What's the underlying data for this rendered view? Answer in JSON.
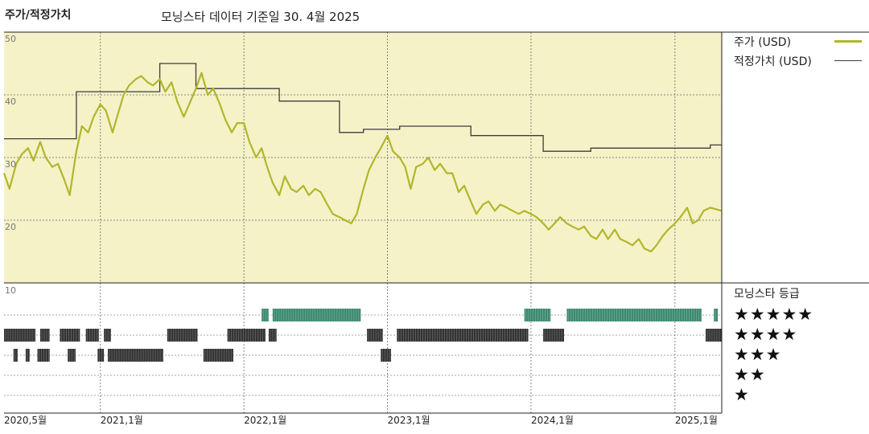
{
  "title": "주가/적정가치",
  "subtitle": "모닝스타 데이터 기준일 30. 4월 2025",
  "legend": {
    "price_label": "주가 (USD)",
    "fair_label": "적정가치 (USD)",
    "rating_title": "모닝스타 등급"
  },
  "colors": {
    "price": "#b1b62b",
    "fair": "#3c3c3c",
    "panel_bg": "#f5f2c8",
    "rating_top": "#3d8a70",
    "rating_other": "#333333"
  },
  "star_rows": [
    "★★★★★",
    "★★★★",
    "★★★",
    "★★",
    "★"
  ],
  "chart_data": {
    "type": "line",
    "y_ticks": [
      "50",
      "40",
      "30",
      "20"
    ],
    "ylim": [
      10,
      50
    ],
    "x_tick_labels": [
      "2020,5월",
      "2021,1월",
      "2022,1월",
      "2023,1월",
      "2024,1월",
      "2025,1월"
    ],
    "x_tick_dates": [
      "2020-05-01",
      "2021-01-01",
      "2022-01-01",
      "2023-01-01",
      "2024-01-01",
      "2025-01-01"
    ],
    "xlim": [
      "2020-05-01",
      "2025-04-30"
    ],
    "series": [
      {
        "name": "주가 (USD)",
        "points": [
          [
            "2020-05-01",
            27.5
          ],
          [
            "2020-05-15",
            25.0
          ],
          [
            "2020-06-01",
            29.0
          ],
          [
            "2020-06-15",
            30.5
          ],
          [
            "2020-07-01",
            31.5
          ],
          [
            "2020-07-15",
            29.5
          ],
          [
            "2020-08-01",
            32.5
          ],
          [
            "2020-08-15",
            30.0
          ],
          [
            "2020-09-01",
            28.5
          ],
          [
            "2020-09-15",
            29.0
          ],
          [
            "2020-10-01",
            26.5
          ],
          [
            "2020-10-15",
            24.0
          ],
          [
            "2020-11-01",
            31.0
          ],
          [
            "2020-11-15",
            35.0
          ],
          [
            "2020-12-01",
            34.0
          ],
          [
            "2020-12-15",
            36.5
          ],
          [
            "2021-01-01",
            38.5
          ],
          [
            "2021-01-15",
            37.5
          ],
          [
            "2021-02-01",
            34.0
          ],
          [
            "2021-02-15",
            37.0
          ],
          [
            "2021-03-01",
            40.0
          ],
          [
            "2021-03-15",
            41.5
          ],
          [
            "2021-04-01",
            42.5
          ],
          [
            "2021-04-15",
            43.0
          ],
          [
            "2021-05-01",
            42.0
          ],
          [
            "2021-05-15",
            41.5
          ],
          [
            "2021-06-01",
            42.5
          ],
          [
            "2021-06-15",
            40.5
          ],
          [
            "2021-07-01",
            42.0
          ],
          [
            "2021-07-15",
            39.0
          ],
          [
            "2021-08-01",
            36.5
          ],
          [
            "2021-08-15",
            38.5
          ],
          [
            "2021-09-01",
            41.0
          ],
          [
            "2021-09-15",
            43.5
          ],
          [
            "2021-10-01",
            40.0
          ],
          [
            "2021-10-15",
            41.0
          ],
          [
            "2021-11-01",
            38.5
          ],
          [
            "2021-11-15",
            36.0
          ],
          [
            "2021-12-01",
            34.0
          ],
          [
            "2021-12-15",
            35.5
          ],
          [
            "2022-01-01",
            35.5
          ],
          [
            "2022-01-15",
            32.5
          ],
          [
            "2022-02-01",
            30.0
          ],
          [
            "2022-02-15",
            31.5
          ],
          [
            "2022-03-01",
            28.5
          ],
          [
            "2022-03-15",
            26.0
          ],
          [
            "2022-04-01",
            24.0
          ],
          [
            "2022-04-15",
            27.0
          ],
          [
            "2022-05-01",
            25.0
          ],
          [
            "2022-05-15",
            24.5
          ],
          [
            "2022-06-01",
            25.5
          ],
          [
            "2022-06-15",
            24.0
          ],
          [
            "2022-07-01",
            25.0
          ],
          [
            "2022-07-15",
            24.5
          ],
          [
            "2022-08-01",
            22.5
          ],
          [
            "2022-08-15",
            21.0
          ],
          [
            "2022-09-01",
            20.5
          ],
          [
            "2022-09-15",
            20.0
          ],
          [
            "2022-10-01",
            19.5
          ],
          [
            "2022-10-15",
            21.0
          ],
          [
            "2022-11-01",
            25.0
          ],
          [
            "2022-11-15",
            28.0
          ],
          [
            "2022-12-01",
            30.0
          ],
          [
            "2022-12-15",
            31.5
          ],
          [
            "2023-01-01",
            33.5
          ],
          [
            "2023-01-15",
            31.0
          ],
          [
            "2023-02-01",
            30.0
          ],
          [
            "2023-02-15",
            28.5
          ],
          [
            "2023-03-01",
            25.0
          ],
          [
            "2023-03-15",
            28.5
          ],
          [
            "2023-04-01",
            29.0
          ],
          [
            "2023-04-15",
            30.0
          ],
          [
            "2023-05-01",
            28.0
          ],
          [
            "2023-05-15",
            29.0
          ],
          [
            "2023-06-01",
            27.5
          ],
          [
            "2023-06-15",
            27.5
          ],
          [
            "2023-07-01",
            24.5
          ],
          [
            "2023-07-15",
            25.5
          ],
          [
            "2023-08-01",
            23.0
          ],
          [
            "2023-08-15",
            21.0
          ],
          [
            "2023-09-01",
            22.5
          ],
          [
            "2023-09-15",
            23.0
          ],
          [
            "2023-10-01",
            21.5
          ],
          [
            "2023-10-15",
            22.5
          ],
          [
            "2023-11-01",
            22.0
          ],
          [
            "2023-11-15",
            21.5
          ],
          [
            "2023-12-01",
            21.0
          ],
          [
            "2023-12-15",
            21.5
          ],
          [
            "2024-01-01",
            21.0
          ],
          [
            "2024-01-15",
            20.5
          ],
          [
            "2024-02-01",
            19.5
          ],
          [
            "2024-02-15",
            18.5
          ],
          [
            "2024-03-01",
            19.5
          ],
          [
            "2024-03-15",
            20.5
          ],
          [
            "2024-04-01",
            19.5
          ],
          [
            "2024-04-15",
            19.0
          ],
          [
            "2024-05-01",
            18.5
          ],
          [
            "2024-05-15",
            19.0
          ],
          [
            "2024-06-01",
            17.5
          ],
          [
            "2024-06-15",
            17.0
          ],
          [
            "2024-07-01",
            18.5
          ],
          [
            "2024-07-15",
            17.0
          ],
          [
            "2024-08-01",
            18.5
          ],
          [
            "2024-08-15",
            17.0
          ],
          [
            "2024-09-01",
            16.5
          ],
          [
            "2024-09-15",
            16.0
          ],
          [
            "2024-10-01",
            17.0
          ],
          [
            "2024-10-15",
            15.5
          ],
          [
            "2024-11-01",
            15.0
          ],
          [
            "2024-11-15",
            16.0
          ],
          [
            "2024-12-01",
            17.5
          ],
          [
            "2024-12-15",
            18.5
          ],
          [
            "2025-01-01",
            19.5
          ],
          [
            "2025-01-15",
            20.5
          ],
          [
            "2025-02-01",
            22.0
          ],
          [
            "2025-02-15",
            19.5
          ],
          [
            "2025-03-01",
            20.0
          ],
          [
            "2025-03-15",
            21.5
          ],
          [
            "2025-04-01",
            22.0
          ],
          [
            "2025-04-30",
            21.5
          ]
        ]
      },
      {
        "name": "적정가치 (USD)",
        "points": [
          [
            "2020-05-01",
            33.0
          ],
          [
            "2020-11-01",
            33.0
          ],
          [
            "2020-11-01",
            40.5
          ],
          [
            "2021-06-01",
            40.5
          ],
          [
            "2021-06-01",
            45.0
          ],
          [
            "2021-09-01",
            45.0
          ],
          [
            "2021-09-01",
            41.0
          ],
          [
            "2022-04-01",
            41.0
          ],
          [
            "2022-04-01",
            39.0
          ],
          [
            "2022-09-01",
            39.0
          ],
          [
            "2022-09-01",
            34.0
          ],
          [
            "2022-11-01",
            34.0
          ],
          [
            "2022-11-01",
            34.5
          ],
          [
            "2023-02-01",
            34.5
          ],
          [
            "2023-02-01",
            35.0
          ],
          [
            "2023-08-01",
            35.0
          ],
          [
            "2023-08-01",
            33.5
          ],
          [
            "2024-02-01",
            33.5
          ],
          [
            "2024-02-01",
            31.0
          ],
          [
            "2024-06-01",
            31.0
          ],
          [
            "2024-06-01",
            31.5
          ],
          [
            "2025-04-01",
            31.5
          ],
          [
            "2025-04-01",
            32.0
          ],
          [
            "2025-04-30",
            32.0
          ]
        ]
      }
    ],
    "ratings": {
      "5": [
        [
          "2022-02-15",
          "2022-03-05"
        ],
        [
          "2022-03-15",
          "2022-10-25"
        ],
        [
          "2023-12-15",
          "2024-02-20"
        ],
        [
          "2024-04-01",
          "2025-03-10"
        ],
        [
          "2025-04-10",
          "2025-04-20"
        ]
      ],
      "4": [
        [
          "2020-05-01",
          "2020-07-20"
        ],
        [
          "2020-08-01",
          "2020-08-25"
        ],
        [
          "2020-09-20",
          "2020-11-10"
        ],
        [
          "2020-11-25",
          "2020-12-28"
        ],
        [
          "2021-01-10",
          "2021-01-28"
        ],
        [
          "2021-06-20",
          "2021-09-05"
        ],
        [
          "2021-11-20",
          "2022-02-25"
        ],
        [
          "2022-03-05",
          "2022-03-25"
        ],
        [
          "2022-11-10",
          "2022-12-20"
        ],
        [
          "2023-01-25",
          "2023-12-25"
        ],
        [
          "2024-02-01",
          "2024-03-25"
        ],
        [
          "2025-03-20",
          "2025-04-30"
        ]
      ],
      "3": [
        [
          "2020-05-25",
          "2020-06-05"
        ],
        [
          "2020-06-25",
          "2020-07-05"
        ],
        [
          "2020-07-25",
          "2020-08-25"
        ],
        [
          "2020-10-10",
          "2020-10-30"
        ],
        [
          "2020-12-25",
          "2021-01-10"
        ],
        [
          "2021-01-20",
          "2021-06-10"
        ],
        [
          "2021-09-20",
          "2021-12-05"
        ],
        [
          "2022-12-15",
          "2023-01-10"
        ]
      ],
      "2": [],
      "1": []
    }
  }
}
